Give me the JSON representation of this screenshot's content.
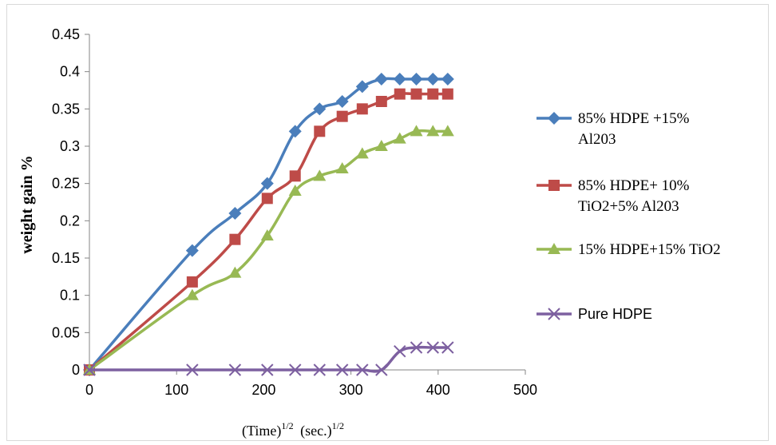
{
  "chart_data": {
    "type": "line",
    "title": "",
    "ylabel": "weight gain %",
    "xlabel": {
      "base": "(Time)",
      "base_exp": "1/2",
      "unit": "(sec.)",
      "unit_exp": "1/2"
    },
    "xlim": [
      0,
      500
    ],
    "ylim": [
      0,
      0.45
    ],
    "x_ticks": [
      0,
      100,
      200,
      300,
      400,
      500
    ],
    "y_ticks": [
      0,
      0.05,
      0.1,
      0.15,
      0.2,
      0.25,
      0.3,
      0.35,
      0.4,
      0.45
    ],
    "x_tick_labels": [
      "0",
      "100",
      "200",
      "300",
      "400",
      "500"
    ],
    "y_tick_labels": [
      "0",
      "0.05",
      "0.1",
      "0.15",
      "0.2",
      "0.25",
      "0.3",
      "0.35",
      "0.4",
      "0.45"
    ],
    "grid": false,
    "legend_position": "right",
    "series": [
      {
        "name_lines": [
          "85% HDPE +15%",
          "Al203"
        ],
        "color": "#4a7ebb",
        "marker": "diamond",
        "x": [
          0,
          118,
          167,
          204,
          236,
          264,
          290,
          313,
          335,
          356,
          375,
          394,
          411
        ],
        "y": [
          0,
          0.16,
          0.21,
          0.25,
          0.32,
          0.35,
          0.36,
          0.38,
          0.39,
          0.39,
          0.39,
          0.39,
          0.39
        ]
      },
      {
        "name_lines": [
          "85%  HDPE+ 10%",
          "TiO2+5%  Al203"
        ],
        "color": "#be4b48",
        "marker": "square",
        "x": [
          0,
          118,
          167,
          204,
          236,
          264,
          290,
          313,
          335,
          356,
          375,
          394,
          411
        ],
        "y": [
          0,
          0.118,
          0.175,
          0.23,
          0.26,
          0.32,
          0.34,
          0.35,
          0.36,
          0.37,
          0.37,
          0.37,
          0.37
        ]
      },
      {
        "name_lines": [
          "15%  HDPE+15%  TiO2"
        ],
        "color": "#98b954",
        "marker": "triangle",
        "x": [
          0,
          118,
          167,
          204,
          236,
          264,
          290,
          313,
          335,
          356,
          375,
          394,
          411
        ],
        "y": [
          0,
          0.1,
          0.13,
          0.18,
          0.24,
          0.26,
          0.27,
          0.29,
          0.3,
          0.31,
          0.32,
          0.32,
          0.32
        ]
      },
      {
        "name_lines": [
          "Pure HDPE"
        ],
        "color": "#7d60a0",
        "marker": "x",
        "x": [
          0,
          118,
          167,
          204,
          236,
          264,
          290,
          313,
          335,
          356,
          375,
          394,
          411
        ],
        "y": [
          0,
          0,
          0,
          0,
          0,
          0,
          0,
          0,
          0,
          0.025,
          0.03,
          0.03,
          0.03
        ]
      }
    ]
  }
}
